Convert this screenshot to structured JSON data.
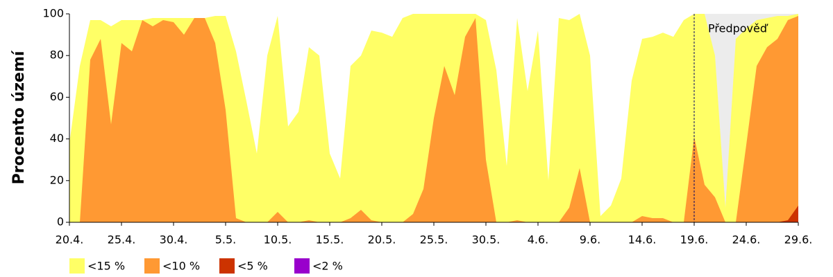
{
  "chart_data": {
    "type": "area",
    "y_label": "Procento území",
    "annotation": "Předpověď",
    "forecast_from": "19.6.",
    "forecast_color": "#ececec",
    "ylim": [
      0,
      100
    ],
    "yticks": [
      0,
      20,
      40,
      60,
      80,
      100
    ],
    "categories": [
      "20.4.",
      null,
      null,
      null,
      null,
      "25.4.",
      null,
      null,
      null,
      null,
      "30.4.",
      null,
      null,
      null,
      null,
      "5.5.",
      null,
      null,
      null,
      null,
      "10.5.",
      null,
      null,
      null,
      null,
      "15.5.",
      null,
      null,
      null,
      null,
      "20.5.",
      null,
      null,
      null,
      null,
      "25.5.",
      null,
      null,
      null,
      null,
      "30.5.",
      null,
      null,
      null,
      null,
      "4.6.",
      null,
      null,
      null,
      null,
      "9.6.",
      null,
      null,
      null,
      null,
      "14.6.",
      null,
      null,
      null,
      null,
      "19.6.",
      null,
      null,
      null,
      null,
      "24.6.",
      null,
      null,
      null,
      null,
      "29.6."
    ],
    "series": [
      {
        "name": "<15 %",
        "color": "#ffff66",
        "values": [
          38,
          75,
          97,
          97,
          94,
          97,
          97,
          97,
          98,
          98,
          98,
          98,
          98,
          98,
          99,
          99,
          82,
          58,
          33,
          80,
          99,
          46,
          53,
          84,
          80,
          33,
          21,
          75,
          80,
          92,
          91,
          89,
          98,
          100,
          100,
          100,
          100,
          100,
          100,
          100,
          97,
          73,
          27,
          98,
          63,
          92,
          20,
          98,
          97,
          100,
          80,
          3,
          8,
          21,
          68,
          88,
          89,
          91,
          89,
          97,
          100,
          100,
          80,
          7,
          88,
          93,
          97,
          98,
          99,
          99,
          100
        ]
      },
      {
        "name": "<10 %",
        "color": "#ff9933",
        "values": [
          0,
          0,
          78,
          88,
          47,
          86,
          82,
          97,
          94,
          97,
          96,
          90,
          98,
          98,
          86,
          54,
          2,
          0,
          0,
          0,
          5,
          0,
          0,
          1,
          0,
          0,
          0,
          2,
          6,
          1,
          0,
          0,
          0,
          4,
          16,
          50,
          75,
          61,
          89,
          98,
          30,
          0,
          0,
          1,
          0,
          0,
          0,
          0,
          7,
          26,
          0,
          0,
          0,
          0,
          0,
          3,
          2,
          2,
          0,
          0,
          41,
          18,
          12,
          0,
          0,
          37,
          75,
          84,
          88,
          97,
          99
        ]
      },
      {
        "name": "<5 %",
        "color": "#cc3300",
        "values": [
          0,
          0,
          0,
          0,
          0,
          0,
          0,
          0,
          0,
          0,
          0,
          0,
          0,
          0,
          0,
          0,
          0,
          0,
          0,
          0,
          0,
          0,
          0,
          0,
          0,
          0,
          0,
          0,
          0,
          0,
          0,
          0,
          0,
          0,
          0,
          0,
          0,
          0,
          0,
          0,
          0,
          0,
          0,
          0,
          0,
          0,
          0,
          0,
          0,
          0,
          0,
          0,
          0,
          0,
          0,
          0,
          0,
          0,
          0,
          0,
          0,
          0,
          0,
          0,
          0,
          0,
          0,
          0,
          0,
          1,
          8
        ]
      },
      {
        "name": "<2 %",
        "color": "#9900cc",
        "values": [
          0,
          0,
          0,
          0,
          0,
          0,
          0,
          0,
          0,
          0,
          0,
          0,
          0,
          0,
          0,
          0,
          0,
          0,
          0,
          0,
          0,
          0,
          0,
          0,
          0,
          0,
          0,
          0,
          0,
          0,
          0,
          0,
          0,
          0,
          0,
          0,
          0,
          0,
          0,
          0,
          0,
          0,
          0,
          0,
          0,
          0,
          0,
          0,
          0,
          0,
          0,
          0,
          0,
          0,
          0,
          0,
          0,
          0,
          0,
          0,
          0,
          0,
          0,
          0,
          0,
          0,
          0,
          0,
          0,
          0,
          0
        ]
      }
    ]
  }
}
